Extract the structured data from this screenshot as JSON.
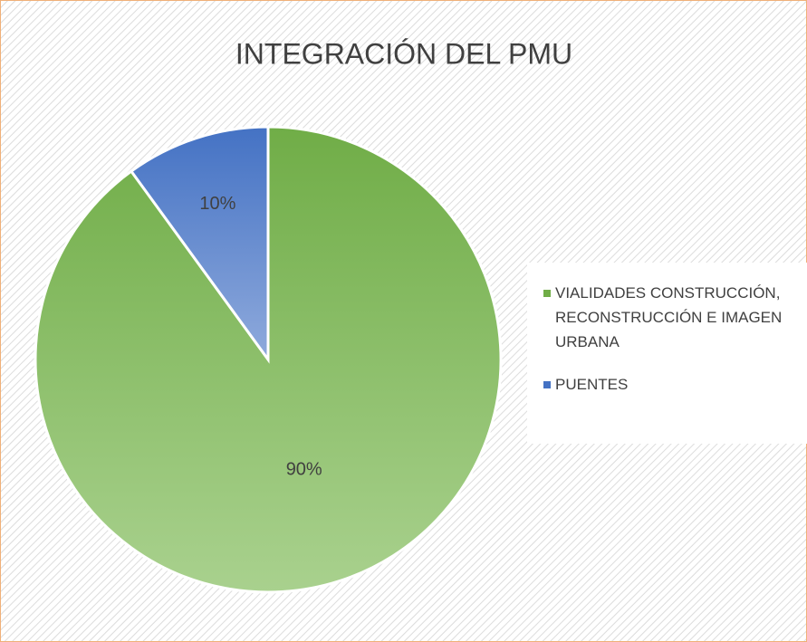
{
  "chart_data": {
    "type": "pie",
    "title": "INTEGRACIÓN DEL PMU",
    "categories": [
      "VIALIDADES CONSTRUCCIÓN, RECONSTRUCCIÓN E IMAGEN URBANA",
      "PUENTES"
    ],
    "values": [
      90,
      10
    ],
    "value_labels": [
      "90%",
      "10%"
    ],
    "colors": [
      [
        "#70ad47",
        "#a9d18e"
      ],
      [
        "#4472c4",
        "#8faadc"
      ]
    ],
    "legend": "right"
  }
}
